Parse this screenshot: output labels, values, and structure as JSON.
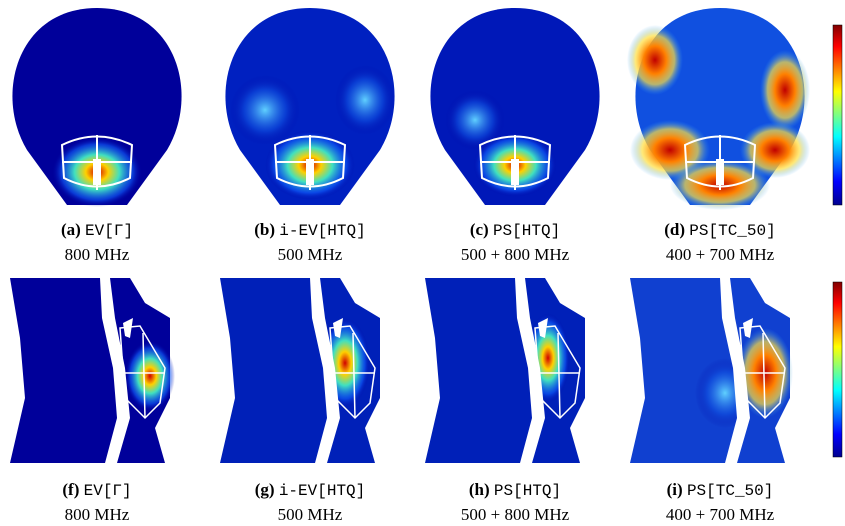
{
  "panels": [
    {
      "tag": "(a)",
      "method": "EV[Γ]",
      "frequency": "800 MHz"
    },
    {
      "tag": "(b)",
      "method": "i-EV[HTQ]",
      "frequency": "500 MHz"
    },
    {
      "tag": "(c)",
      "method": "PS[HTQ]",
      "frequency": "500 + 800 MHz"
    },
    {
      "tag": "(d)",
      "method": "PS[TC_50]",
      "frequency": "400 + 700 MHz"
    },
    {
      "tag": "(f)",
      "method": "EV[Γ]",
      "frequency": "800 MHz"
    },
    {
      "tag": "(g)",
      "method": "i-EV[HTQ]",
      "frequency": "500 MHz"
    },
    {
      "tag": "(h)",
      "method": "PS[HTQ]",
      "frequency": "500 + 800 MHz"
    },
    {
      "tag": "(i)",
      "method": "PS[TC_50]",
      "frequency": "400 + 700 MHz"
    }
  ]
}
